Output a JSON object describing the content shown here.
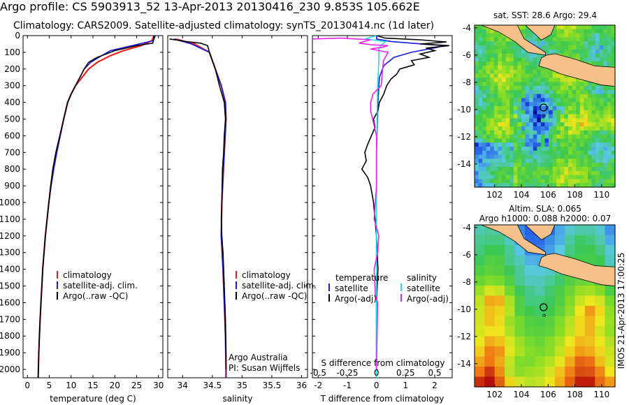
{
  "title_line1": "Argo profile: CS 5903913_52 13-Apr-2013 20130416_230 9.853S 105.662E",
  "title_line2": "Climatology: CARS2009. Satellite-adjusted climatology: synTS_20130414.nc (1d later)",
  "colors": {
    "climatology": "#e8201c",
    "satellite": "#1a1ae0",
    "argo": "#000000",
    "sal_sat": "#22e0e8",
    "sal_argo": "#ee22ee",
    "land": "#f5c08a"
  },
  "depth_ticks": [
    "0",
    "100",
    "200",
    "300",
    "400",
    "500",
    "600",
    "700",
    "800",
    "900",
    "1000",
    "1100",
    "1200",
    "1300",
    "1400",
    "1500",
    "1600",
    "1700",
    "1800",
    "1900",
    "2000"
  ],
  "chart_data": [
    {
      "type": "line",
      "xlabel": "temperature (deg C)",
      "ylim": [
        2050,
        0
      ],
      "xlim": [
        -1,
        31
      ],
      "xticks": [
        "0",
        "5",
        "10",
        "15",
        "20",
        "25",
        "30"
      ],
      "legend": [
        "climatology",
        "satellite-adj. clim.",
        "Argo(..raw -QC)"
      ],
      "series": [
        {
          "name": "climatology",
          "points": [
            [
              29,
              0
            ],
            [
              28.5,
              30
            ],
            [
              26,
              60
            ],
            [
              22,
              90
            ],
            [
              19,
              120
            ],
            [
              16,
              160
            ],
            [
              14,
              200
            ],
            [
              12.5,
              250
            ],
            [
              11,
              300
            ],
            [
              10,
              350
            ],
            [
              9.2,
              400
            ],
            [
              8.3,
              500
            ],
            [
              7.5,
              600
            ],
            [
              6.7,
              700
            ],
            [
              6,
              800
            ],
            [
              5.4,
              900
            ],
            [
              4.9,
              1000
            ],
            [
              4.5,
              1100
            ],
            [
              4.1,
              1200
            ],
            [
              3.8,
              1300
            ],
            [
              3.5,
              1400
            ],
            [
              3.3,
              1500
            ],
            [
              3.1,
              1600
            ],
            [
              2.9,
              1700
            ],
            [
              2.75,
              1800
            ],
            [
              2.6,
              1900
            ],
            [
              2.5,
              2000
            ],
            [
              2.45,
              2050
            ]
          ]
        },
        {
          "name": "satellite-adj. clim.",
          "points": [
            [
              29.3,
              0
            ],
            [
              28.8,
              30
            ],
            [
              24,
              60
            ],
            [
              19,
              90
            ],
            [
              17,
              120
            ],
            [
              14.5,
              160
            ],
            [
              13,
              200
            ],
            [
              12,
              250
            ],
            [
              11,
              300
            ],
            [
              10,
              350
            ],
            [
              9.2,
              400
            ],
            [
              8.3,
              500
            ],
            [
              7.5,
              600
            ],
            [
              6.7,
              700
            ],
            [
              6,
              800
            ],
            [
              5.4,
              900
            ],
            [
              4.9,
              1000
            ],
            [
              4.5,
              1100
            ],
            [
              4.1,
              1200
            ],
            [
              3.8,
              1300
            ],
            [
              3.5,
              1400
            ],
            [
              3.3,
              1500
            ],
            [
              3.1,
              1600
            ],
            [
              2.9,
              1700
            ],
            [
              2.75,
              1800
            ],
            [
              2.6,
              1900
            ],
            [
              2.5,
              2000
            ],
            [
              2.45,
              2050
            ]
          ]
        },
        {
          "name": "Argo(..raw -QC)",
          "points": [
            [
              29,
              0
            ],
            [
              28.9,
              25
            ],
            [
              28.7,
              45
            ],
            [
              25,
              60
            ],
            [
              20,
              90
            ],
            [
              16,
              130
            ],
            [
              14,
              160
            ],
            [
              13,
              200
            ],
            [
              12,
              250
            ],
            [
              11,
              300
            ],
            [
              10,
              350
            ],
            [
              9.2,
              400
            ],
            [
              8.3,
              500
            ],
            [
              7.4,
              600
            ],
            [
              6.5,
              700
            ],
            [
              5.8,
              800
            ],
            [
              5.3,
              900
            ],
            [
              4.9,
              1000
            ],
            [
              4.5,
              1100
            ],
            [
              4.1,
              1200
            ],
            [
              3.8,
              1300
            ],
            [
              3.5,
              1400
            ],
            [
              3.3,
              1500
            ],
            [
              3.1,
              1600
            ],
            [
              2.9,
              1700
            ],
            [
              2.75,
              1800
            ],
            [
              2.6,
              1900
            ],
            [
              2.5,
              2000
            ],
            [
              2.45,
              2050
            ]
          ]
        }
      ]
    },
    {
      "type": "line",
      "xlabel": "salinity",
      "ylim": [
        2050,
        0
      ],
      "xlim": [
        33.75,
        36.1
      ],
      "xticks": [
        "34",
        "34.5",
        "35",
        "35.5",
        "36"
      ],
      "legend": [
        "climatology",
        "satellite-adj. clim.",
        "Argo(..raw -QC)"
      ],
      "annotation": [
        "Argo Australia",
        "PI: Susan Wijffels"
      ],
      "series": [
        {
          "name": "climatology",
          "points": [
            [
              33.88,
              20
            ],
            [
              34.2,
              50
            ],
            [
              34.45,
              100
            ],
            [
              34.55,
              200
            ],
            [
              34.65,
              300
            ],
            [
              34.72,
              400
            ],
            [
              34.73,
              500
            ],
            [
              34.7,
              700
            ],
            [
              34.66,
              1000
            ],
            [
              34.65,
              1200
            ],
            [
              34.68,
              1400
            ],
            [
              34.7,
              1600
            ],
            [
              34.72,
              1800
            ],
            [
              34.73,
              2000
            ],
            [
              34.73,
              2050
            ]
          ]
        },
        {
          "name": "satellite-adj. clim.",
          "points": [
            [
              33.85,
              20
            ],
            [
              34.15,
              50
            ],
            [
              34.45,
              100
            ],
            [
              34.55,
              200
            ],
            [
              34.65,
              300
            ],
            [
              34.72,
              400
            ],
            [
              34.73,
              500
            ],
            [
              34.7,
              700
            ],
            [
              34.66,
              1000
            ],
            [
              34.65,
              1200
            ],
            [
              34.68,
              1400
            ],
            [
              34.7,
              1600
            ],
            [
              34.72,
              1800
            ],
            [
              34.73,
              2000
            ],
            [
              34.73,
              2050
            ]
          ]
        },
        {
          "name": "Argo(..raw -QC)",
          "points": [
            [
              33.78,
              20
            ],
            [
              34.05,
              35
            ],
            [
              34.3,
              45
            ],
            [
              34.42,
              60
            ],
            [
              34.45,
              100
            ],
            [
              34.5,
              150
            ],
            [
              34.55,
              200
            ],
            [
              34.62,
              300
            ],
            [
              34.7,
              400
            ],
            [
              34.72,
              500
            ],
            [
              34.7,
              600
            ],
            [
              34.69,
              700
            ],
            [
              34.67,
              800
            ],
            [
              34.66,
              1000
            ],
            [
              34.65,
              1100
            ],
            [
              34.66,
              1200
            ],
            [
              34.68,
              1300
            ],
            [
              34.7,
              1500
            ],
            [
              34.72,
              1700
            ],
            [
              34.73,
              1900
            ],
            [
              34.73,
              2000
            ]
          ]
        }
      ]
    },
    {
      "type": "line",
      "xlabel": "T difference from climatology",
      "top_label": "S difference from climatology",
      "ylim": [
        2050,
        0
      ],
      "xlim": [
        -2.2,
        2.6
      ],
      "xticks": [
        "-2",
        "-1",
        "0",
        "1",
        "2"
      ],
      "top_ticks": [
        "-0.5",
        "-0.25",
        "0",
        "0.25",
        "0.5"
      ],
      "legend_temperature": [
        "temperature",
        "satellite",
        "Argo(-adj)"
      ],
      "legend_salinity": [
        "salinity",
        "satellite",
        "Argo(-adj)"
      ],
      "series": [
        {
          "name": "T satellite",
          "points": [
            [
              0,
              0
            ],
            [
              0,
              20
            ],
            [
              0.5,
              35
            ],
            [
              1.2,
              45
            ],
            [
              2.3,
              60
            ],
            [
              2.1,
              70
            ],
            [
              1.2,
              100
            ],
            [
              0.6,
              130
            ],
            [
              0.25,
              180
            ],
            [
              0.1,
              250
            ],
            [
              0.05,
              400
            ],
            [
              0,
              700
            ],
            [
              0,
              1000
            ],
            [
              0,
              1500
            ],
            [
              0,
              2000
            ],
            [
              0,
              2050
            ]
          ]
        },
        {
          "name": "T Argo(-adj)",
          "points": [
            [
              0,
              0
            ],
            [
              0.3,
              15
            ],
            [
              1.5,
              25
            ],
            [
              2.4,
              38
            ],
            [
              1.5,
              50
            ],
            [
              2.5,
              60
            ],
            [
              1.7,
              75
            ],
            [
              2.0,
              90
            ],
            [
              1.5,
              110
            ],
            [
              1.8,
              130
            ],
            [
              1.2,
              150
            ],
            [
              1.3,
              175
            ],
            [
              0.8,
              200
            ],
            [
              0.7,
              230
            ],
            [
              0.5,
              260
            ],
            [
              0.35,
              300
            ],
            [
              0.25,
              350
            ],
            [
              0.1,
              400
            ],
            [
              0.05,
              450
            ],
            [
              -0.1,
              500
            ],
            [
              -0.05,
              550
            ],
            [
              -0.3,
              650
            ],
            [
              -0.4,
              700
            ],
            [
              -0.35,
              750
            ],
            [
              -0.5,
              800
            ],
            [
              -0.3,
              850
            ],
            [
              -0.2,
              900
            ],
            [
              -0.1,
              1000
            ],
            [
              0,
              1200
            ],
            [
              0.05,
              1400
            ],
            [
              0,
              1600
            ],
            [
              0,
              2000
            ],
            [
              0,
              2050
            ]
          ]
        },
        {
          "name": "S satellite",
          "points": [
            [
              0,
              0
            ],
            [
              -0.1,
              20
            ],
            [
              0.08,
              35
            ],
            [
              0.05,
              50
            ],
            [
              0.02,
              80
            ],
            [
              0.02,
              150
            ],
            [
              0.01,
              300
            ],
            [
              0,
              700
            ],
            [
              0,
              1200
            ],
            [
              0,
              2000
            ],
            [
              0,
              2050
            ]
          ]
        },
        {
          "name": "S Argo(-adj)",
          "points": [
            [
              -0.55,
              20
            ],
            [
              -0.3,
              15
            ],
            [
              -0.05,
              25
            ],
            [
              -0.12,
              38
            ],
            [
              -0.15,
              45
            ],
            [
              -0.05,
              55
            ],
            [
              0.1,
              60
            ],
            [
              0.05,
              70
            ],
            [
              -0.05,
              80
            ],
            [
              0.1,
              100
            ],
            [
              0.06,
              150
            ],
            [
              0.04,
              300
            ],
            [
              -0.03,
              350
            ],
            [
              -0.05,
              400
            ],
            [
              -0.05,
              450
            ],
            [
              0,
              600
            ],
            [
              0,
              900
            ],
            [
              -0.02,
              1100
            ],
            [
              0.02,
              1200
            ],
            [
              0.01,
              1300
            ],
            [
              -0.02,
              1400
            ],
            [
              -0.01,
              1550
            ],
            [
              0.01,
              1600
            ],
            [
              0,
              2000
            ]
          ]
        }
      ]
    },
    {
      "type": "heatmap",
      "title": "sat. SST: 28.6  Argo: 29.4",
      "xticks": [
        "102",
        "104",
        "106",
        "108",
        "110"
      ],
      "yticks": [
        "-4",
        "-6",
        "-8",
        "-10",
        "-12",
        "-14"
      ],
      "xlim": [
        100.5,
        111
      ],
      "ylim": [
        -15.7,
        -3.8
      ],
      "marker": {
        "lon": 105.662,
        "lat": -9.853
      }
    },
    {
      "type": "heatmap",
      "title_lines": [
        "Altim. SLA: 0.065",
        "Argo h1000: 0.088 h2000: 0.07"
      ],
      "xticks": [
        "102",
        "104",
        "106",
        "108",
        "110"
      ],
      "yticks": [
        "-4",
        "-6",
        "-8",
        "-10",
        "-12",
        "-14"
      ],
      "xlim": [
        100.5,
        111
      ],
      "ylim": [
        -15.7,
        -3.8
      ],
      "marker": {
        "lon": 105.662,
        "lat": -9.853
      }
    }
  ],
  "stamp": "IMOS 21-Apr-2013 17:00:25"
}
